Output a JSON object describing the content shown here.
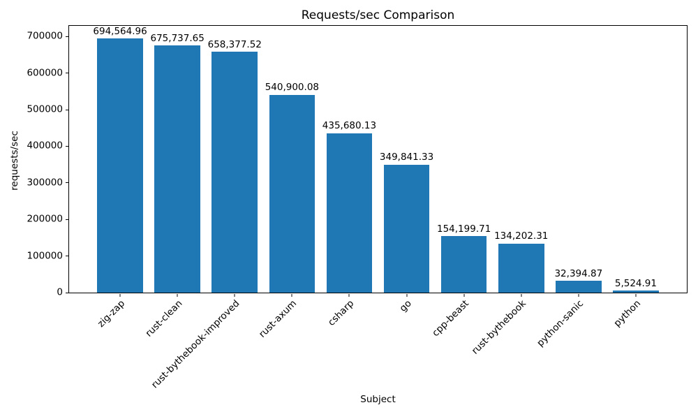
{
  "figure": {
    "background": "#ffffff",
    "text_color": "#000000",
    "spine_color": "#000000"
  },
  "chart_data": {
    "type": "bar",
    "title": "Requests/sec Comparison",
    "xlabel": "Subject",
    "ylabel": "requests/sec",
    "categories": [
      "zig-zap",
      "rust-clean",
      "rust-bythebook-improved",
      "rust-axum",
      "csharp",
      "go",
      "cpp-beast",
      "rust-bythebook",
      "python-sanic",
      "python"
    ],
    "values": [
      694564.96,
      675737.65,
      658377.52,
      540900.08,
      435680.13,
      349841.33,
      154199.71,
      134202.31,
      32394.87,
      5524.91
    ],
    "value_labels": [
      "694,564.96",
      "675,737.65",
      "658,377.52",
      "540,900.08",
      "435,680.13",
      "349,841.33",
      "154,199.71",
      "134,202.31",
      "32,394.87",
      "5,524.91"
    ],
    "bar_color": "#1f77b4",
    "ylim": [
      0,
      729293
    ],
    "ytick_values": [
      0,
      100000,
      200000,
      300000,
      400000,
      500000,
      600000,
      700000
    ],
    "ytick_labels": [
      "0",
      "100000",
      "200000",
      "300000",
      "400000",
      "500000",
      "600000",
      "700000"
    ],
    "bar_width_fraction": 0.8,
    "x_margin_fraction": 0.05,
    "grid": false,
    "legend": null,
    "xtick_rotation_deg": 45
  }
}
